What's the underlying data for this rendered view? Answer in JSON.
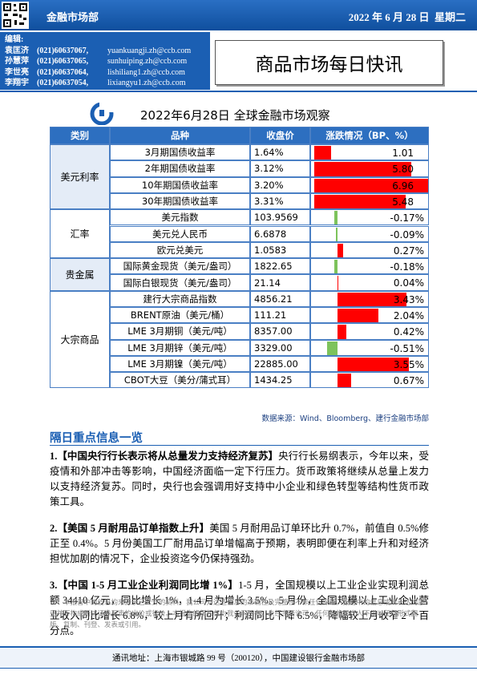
{
  "header": {
    "department": "金融市场部",
    "date": "2022 年 6 月 28 日  星期二",
    "editor_label": "编辑:",
    "contacts": [
      {
        "name": "袁匡济",
        "phone": "(021)60637067,",
        "email": "yuankuangji.zh@ccb.com"
      },
      {
        "name": "孙慧萍",
        "phone": "(021)60637065,",
        "email": "sunhuiping.zh@ccb.com"
      },
      {
        "name": "李世亮",
        "phone": "(021)60637064,",
        "email": "lishiliang1.zh@ccb.com"
      },
      {
        "name": "李翔宇",
        "phone": "(021)60637054,",
        "email": "lixiangyu1.zh@ccb.com"
      }
    ],
    "title": "商品市场每日快讯"
  },
  "table": {
    "title": "2022年6月28日 全球金融市场观察",
    "columns": [
      "类别",
      "品种",
      "收盘价",
      "涨跌情况（BP、%）"
    ],
    "groups": [
      {
        "name": "美元利率",
        "rows": [
          {
            "item": "3月期国债收益率",
            "close": "1.64%",
            "change": 1.01,
            "change_label": "1.01"
          },
          {
            "item": "2年期国债收益率",
            "close": "3.12%",
            "change": 5.8,
            "change_label": "5.80"
          },
          {
            "item": "10年期国债收益率",
            "close": "3.20%",
            "change": 6.96,
            "change_label": "6.96"
          },
          {
            "item": "30年期国债收益率",
            "close": "3.31%",
            "change": 5.48,
            "change_label": "5.48"
          }
        ]
      },
      {
        "name": "汇率",
        "rows": [
          {
            "item": "美元指数",
            "close": "103.9569",
            "change": -0.17,
            "change_label": "-0.17%"
          },
          {
            "item": "美元兑人民币",
            "close": "6.6878",
            "change": -0.09,
            "change_label": "-0.09%"
          },
          {
            "item": "欧元兑美元",
            "close": "1.0583",
            "change": 0.27,
            "change_label": "0.27%"
          }
        ]
      },
      {
        "name": "贵金属",
        "rows": [
          {
            "item": "国际黄金现货（美元/盎司）",
            "close": "1822.65",
            "change": -0.18,
            "change_label": "-0.18%"
          },
          {
            "item": "国际白银现货（美元/盎司）",
            "close": "21.14",
            "change": 0.04,
            "change_label": "0.04%"
          }
        ]
      },
      {
        "name": "大宗商品",
        "rows": [
          {
            "item": "建行大宗商品指数",
            "close": "4856.21",
            "change": 3.43,
            "change_label": "3.43%"
          },
          {
            "item": "BRENT原油（美元/桶）",
            "close": "111.21",
            "change": 2.04,
            "change_label": "2.04%"
          },
          {
            "item": "LME 3月期铜（美元/吨）",
            "close": "8357.00",
            "change": 0.42,
            "change_label": "0.42%"
          },
          {
            "item": "LME 3月期锌（美元/吨）",
            "close": "3329.00",
            "change": -0.51,
            "change_label": "-0.51%"
          },
          {
            "item": "LME 3月期镍（美元/吨）",
            "close": "22885.00",
            "change": 3.55,
            "change_label": "3.55%"
          },
          {
            "item": "CBOT大豆（美分/蒲式耳）",
            "close": "1434.25",
            "change": 0.67,
            "change_label": "0.67%"
          }
        ]
      }
    ],
    "source": "数据来源：Wind、Bloomberg、建行金融市场部"
  },
  "news": {
    "heading": "隔日重点信息一览",
    "items": [
      {
        "lead": "1.【中国央行行长表示将从总量发力支持经济复苏】",
        "body": "央行行长易纲表示，今年以来，受疫情和外部冲击等影响，中国经济面临一定下行压力。货币政策将继续从总量上发力以支持经济复苏。同时，央行也会强调用好支持中小企业和绿色转型等结构性货币政策工具。"
      },
      {
        "lead": "2.【美国 5 月耐用品订单指数上升】",
        "body": "美国 5 月耐用品订单环比升 0.7%，前值自 0.5%修正至 0.4%。5 月份美国工厂耐用品订单增幅高于预期，表明即便在利率上升和对经济担忧加剧的情况下，企业投资迄今仍保持强劲。"
      },
      {
        "lead": "3.【中国 1-5 月工业企业利润同比增 1%】",
        "body": "1-5 月，全国规模以上工业企业实现利润总额 34410 亿元，同比增长 1%，1-4 月为增长 3.5%。5 月份，全国规模以上工业企业营业收入同比增长 6.8%，较上月有所回升；利润同比下降 6.5%，降幅较上月收窄 2 个百分点。"
      }
    ]
  },
  "disclaimer": "本报告中的信息均来源于已公开的资料，我公司对这些信息的准确性及完整性不作任何保证。报告中的信息或所表达的意见并不构成所述证券买卖的出价或征价。本报告的版权仅为我公司所有，未经书面许可，任何机构和个人不得以任何形式翻版、复制、刊登、发表或引用。",
  "footer": "通讯地址：上海市银城路 99 号（200120），中国建设银行金融市场部"
}
